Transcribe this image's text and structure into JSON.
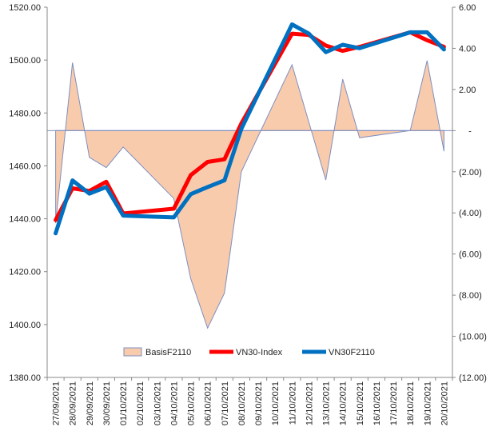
{
  "chart_data": {
    "type": "line",
    "categories": [
      "27/09/2021",
      "28/09/2021",
      "29/09/2021",
      "30/09/2021",
      "01/10/2021",
      "02/10/2021",
      "03/10/2021",
      "04/10/2021",
      "05/10/2021",
      "06/10/2021",
      "07/10/2021",
      "08/10/2021",
      "09/10/2021",
      "10/10/2021",
      "11/10/2021",
      "12/10/2021",
      "13/10/2021",
      "14/10/2021",
      "15/10/2021",
      "16/10/2021",
      "17/10/2021",
      "18/10/2021",
      "19/10/2021",
      "20/10/2021"
    ],
    "left_axis": {
      "ylim": [
        1380,
        1520
      ],
      "ticks": [
        "1380.00",
        "1400.00",
        "1420.00",
        "1440.00",
        "1460.00",
        "1480.00",
        "1500.00",
        "1520.00"
      ],
      "tick_values": [
        1380,
        1400,
        1420,
        1440,
        1460,
        1480,
        1500,
        1520
      ]
    },
    "right_axis": {
      "ylim": [
        -12,
        6
      ],
      "ticks": [
        "(12.00)",
        "(10.00)",
        "(8.00)",
        "(6.00)",
        "(4.00)",
        "(2.00)",
        "-",
        "2.00",
        "4.00",
        "6.00"
      ],
      "tick_values": [
        -12,
        -10,
        -8,
        -6,
        -4,
        -2,
        0,
        2,
        4,
        6
      ]
    },
    "series": [
      {
        "name": "BasisF2110",
        "kind": "area",
        "axis": "right",
        "color": "#f8cbad",
        "line_color": "#7f8fbf",
        "points": [
          [
            0,
            -4.5
          ],
          [
            1,
            3.3
          ],
          [
            2,
            -1.3
          ],
          [
            3,
            -1.8
          ],
          [
            4,
            -0.8
          ],
          [
            7,
            -3.3
          ],
          [
            8,
            -7.2
          ],
          [
            9,
            -9.6
          ],
          [
            10,
            -7.9
          ],
          [
            11,
            -2.0
          ],
          [
            14,
            3.2
          ],
          [
            16,
            -2.4
          ],
          [
            17,
            2.5
          ],
          [
            18,
            -0.35
          ],
          [
            21,
            0
          ],
          [
            22,
            3.4
          ],
          [
            23,
            -1.0
          ]
        ]
      },
      {
        "name": "VN30-Index",
        "kind": "line",
        "axis": "left",
        "color": "#ff0000",
        "points": [
          [
            0,
            1439.5
          ],
          [
            1,
            1451.5
          ],
          [
            2,
            1450.5
          ],
          [
            3,
            1454
          ],
          [
            4,
            1442
          ],
          [
            7,
            1443.8
          ],
          [
            8,
            1456.5
          ],
          [
            9,
            1461.5
          ],
          [
            10,
            1462.5
          ],
          [
            11,
            1476
          ],
          [
            14,
            1510
          ],
          [
            15,
            1509.5
          ],
          [
            16,
            1505.5
          ],
          [
            17,
            1503.5
          ],
          [
            18,
            1505
          ],
          [
            21,
            1510.5
          ],
          [
            22,
            1507.5
          ],
          [
            23,
            1505
          ]
        ]
      },
      {
        "name": "VN30F2110",
        "kind": "line",
        "axis": "left",
        "color": "#0070c0",
        "points": [
          [
            0,
            1434.5
          ],
          [
            1,
            1454.5
          ],
          [
            2,
            1449.5
          ],
          [
            3,
            1452
          ],
          [
            4,
            1441.2
          ],
          [
            7,
            1440.5
          ],
          [
            8,
            1449.3
          ],
          [
            9,
            1452
          ],
          [
            10,
            1454.5
          ],
          [
            11,
            1474
          ],
          [
            14,
            1513.5
          ],
          [
            15,
            1510
          ],
          [
            16,
            1503
          ],
          [
            17,
            1505.8
          ],
          [
            18,
            1504.5
          ],
          [
            21,
            1510.5
          ],
          [
            22,
            1510.5
          ],
          [
            23,
            1504
          ]
        ]
      }
    ],
    "legend": {
      "position": "bottom-inside",
      "entries": [
        "BasisF2110",
        "VN30-Index",
        "VN30F2110"
      ]
    },
    "grid": false
  }
}
